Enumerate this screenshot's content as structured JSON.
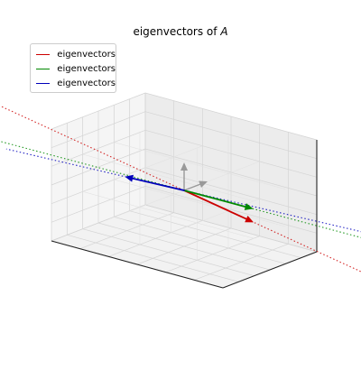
{
  "chart_data": {
    "type": "line",
    "projection": "3d",
    "title": "eigenvectors of ",
    "title_math": "A",
    "legend_placement": "upper-left",
    "legend": [
      {
        "label": "eigenvectors",
        "color": "#cc0000"
      },
      {
        "label": "eigenvectors",
        "color": "#008800"
      },
      {
        "label": "eigenvectors",
        "color": "#0000bb"
      }
    ],
    "grid": true,
    "axis_ticks_visible": false,
    "box_range": [
      -1,
      1
    ],
    "grid_divisions": 6,
    "origin_arrows": [
      {
        "name": "z-axis-arrow",
        "color": "#999999",
        "vector": [
          0,
          0,
          0.5
        ]
      },
      {
        "name": "y-axis-arrow",
        "color": "#999999",
        "vector": [
          0,
          0.5,
          0
        ]
      }
    ],
    "series": [
      {
        "color": "#cc0000",
        "vector": [
          0.92,
          -0.2,
          -0.12
        ]
      },
      {
        "color": "#008800",
        "vector": [
          0.45,
          0.65,
          -0.35
        ]
      },
      {
        "color": "#0000bb",
        "vector": [
          -0.5,
          -0.35,
          0.15
        ]
      }
    ],
    "line_extent": 3
  }
}
